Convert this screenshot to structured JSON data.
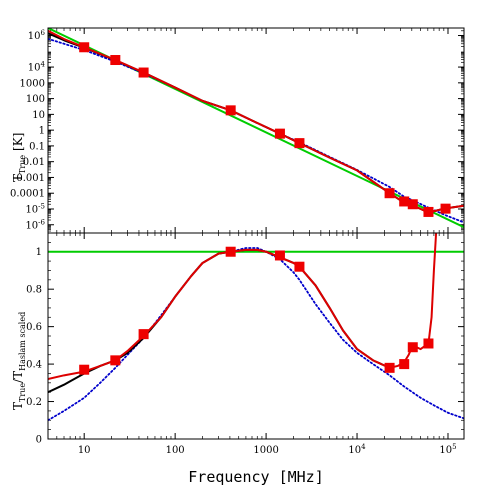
{
  "chart_data": [
    {
      "type": "line",
      "panel": "top",
      "ylabel": "T",
      "ylabel_sub": "True",
      "ylabel_unit": "[K]",
      "xscale": "log",
      "yscale": "log",
      "xlim": [
        4,
        150000
      ],
      "ylim": [
        3e-07,
        3000000.0
      ],
      "xlabel": "",
      "y_tick_labels": [
        "10^6",
        "10^4",
        "1000",
        "100",
        "10",
        "1",
        "0.1",
        "0.01",
        "0.001",
        "0.0001",
        "10^-5",
        "10^-6"
      ],
      "series": [
        {
          "color": "#00cc00",
          "style": "solid",
          "x": [
            4,
            150000
          ],
          "y": [
            3000000,
            7e-07
          ]
        },
        {
          "color": "#0000cc",
          "style": "dotted",
          "x": [
            4,
            6,
            10,
            22,
            45,
            100,
            200,
            408,
            700,
            1420,
            2326,
            5000,
            10000,
            22800,
            33000,
            41000,
            61000,
            94000,
            150000
          ],
          "y": [
            620000,
            300000,
            120000,
            22000,
            4000,
            500,
            70,
            18,
            4,
            0.6,
            0.17,
            0.02,
            0.003,
            0.00025,
            6e-05,
            3.5e-05,
            1.2e-05,
            4e-06,
            1.4e-06
          ]
        },
        {
          "color": "#000000",
          "style": "solid",
          "x": [
            4,
            6,
            10,
            22,
            45,
            100,
            200,
            408,
            700,
            1420,
            2326,
            5000,
            10000,
            22800,
            33000,
            41000,
            61000,
            94000,
            150000
          ],
          "y": [
            1400000,
            500000,
            170000,
            27000,
            4500,
            500,
            72,
            18,
            4.1,
            0.6,
            0.15,
            0.018,
            0.0028,
            0.0001,
            2.5e-05,
            1.7e-05,
            6e-06,
            1.1e-05,
            1.6e-05
          ]
        },
        {
          "color": "#dd0000",
          "style": "solid",
          "x": [
            4,
            6,
            10,
            22,
            45,
            100,
            200,
            408,
            700,
            1420,
            2326,
            5000,
            10000,
            22800,
            33000,
            41000,
            61000,
            94000,
            150000
          ],
          "y": [
            2000000,
            600000,
            180000,
            28000,
            4500,
            500,
            72,
            18,
            4.1,
            0.6,
            0.15,
            0.018,
            0.0028,
            0.0001,
            2.5e-05,
            1.7e-05,
            6e-06,
            1.1e-05,
            1.6e-05
          ]
        }
      ],
      "markers": {
        "color": "#ee0000",
        "x": [
          10,
          22,
          45,
          408,
          1420,
          2326,
          22800,
          33000,
          41000,
          61000,
          94000
        ],
        "y": [
          180000,
          28000,
          4500,
          18,
          0.6,
          0.15,
          0.0001,
          3e-05,
          2e-05,
          6.5e-06,
          1.05e-05
        ]
      }
    },
    {
      "type": "line",
      "panel": "bottom",
      "ylabel": "T",
      "ylabel_sub": "True",
      "ylabel_mid": "/T",
      "ylabel_sub2": "Haslam scaled",
      "xlabel": "Frequency [MHz]",
      "xscale": "log",
      "xlim": [
        4,
        150000
      ],
      "ylim": [
        0,
        1.1
      ],
      "x_tick_labels": [
        "10",
        "100",
        "1000",
        "10^4",
        "10^5"
      ],
      "y_tick_labels": [
        "0",
        "0.2",
        "0.4",
        "0.6",
        "0.8",
        "1"
      ],
      "series": [
        {
          "color": "#00cc00",
          "style": "solid",
          "x": [
            4,
            150000
          ],
          "y": [
            1,
            1
          ]
        },
        {
          "color": "#0000cc",
          "style": "dotted",
          "x": [
            4,
            6,
            10,
            15,
            22,
            30,
            45,
            70,
            100,
            150,
            200,
            300,
            408,
            600,
            800,
            1000,
            1420,
            2000,
            2326,
            3500,
            5000,
            7000,
            10000,
            15000,
            22800,
            33000,
            50000,
            70000,
            100000,
            150000
          ],
          "y": [
            0.1,
            0.15,
            0.22,
            0.3,
            0.38,
            0.45,
            0.54,
            0.66,
            0.76,
            0.87,
            0.94,
            0.99,
            1.0,
            1.02,
            1.02,
            1.0,
            0.96,
            0.89,
            0.85,
            0.72,
            0.62,
            0.53,
            0.46,
            0.4,
            0.34,
            0.28,
            0.22,
            0.18,
            0.14,
            0.11
          ]
        },
        {
          "color": "#000000",
          "style": "solid",
          "x": [
            4,
            6,
            10,
            15,
            22,
            30,
            45,
            70,
            100,
            150,
            200,
            300,
            408,
            600,
            800,
            1000,
            1420,
            2000,
            2326,
            3500,
            5000,
            7000,
            10000,
            15000,
            22800
          ],
          "y": [
            0.25,
            0.29,
            0.35,
            0.39,
            0.42,
            0.46,
            0.54,
            0.65,
            0.76,
            0.87,
            0.94,
            0.99,
            1.0,
            1.01,
            1.01,
            1.0,
            0.97,
            0.94,
            0.92,
            0.82,
            0.7,
            0.58,
            0.48,
            0.42,
            0.38
          ]
        },
        {
          "color": "#dd0000",
          "style": "solid",
          "x": [
            4,
            6,
            10,
            15,
            22,
            30,
            45,
            70,
            100,
            150,
            200,
            300,
            408,
            600,
            800,
            1000,
            1420,
            2000,
            2326,
            3500,
            5000,
            7000,
            10000,
            15000,
            22800,
            28000,
            33000,
            37000,
            41000,
            50000,
            61000,
            66000,
            70000,
            74000
          ],
          "y": [
            0.32,
            0.34,
            0.36,
            0.39,
            0.42,
            0.47,
            0.55,
            0.65,
            0.76,
            0.87,
            0.94,
            0.99,
            1.0,
            1.01,
            1.01,
            1.0,
            0.97,
            0.94,
            0.92,
            0.82,
            0.7,
            0.58,
            0.48,
            0.42,
            0.38,
            0.39,
            0.41,
            0.45,
            0.5,
            0.48,
            0.51,
            0.65,
            0.9,
            1.1
          ]
        }
      ],
      "markers": {
        "color": "#ee0000",
        "x": [
          10,
          22,
          45,
          408,
          1420,
          2326,
          22800,
          33000,
          41000,
          61000
        ],
        "y": [
          0.37,
          0.42,
          0.56,
          1.0,
          0.98,
          0.92,
          0.38,
          0.4,
          0.49,
          0.51
        ]
      }
    }
  ]
}
